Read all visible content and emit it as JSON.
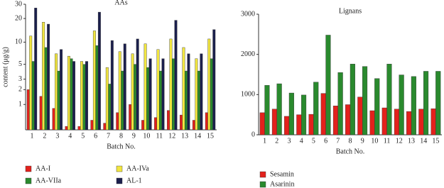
{
  "chart_data": [
    {
      "type": "bar",
      "title": "AAs",
      "xlabel": "Batch No.",
      "ylabel": "content (μg/g)",
      "yscale": "symlog",
      "categories": [
        "1",
        "2",
        "3",
        "4",
        "5",
        "6",
        "7",
        "8",
        "9",
        "10",
        "11",
        "12",
        "13",
        "14",
        "15"
      ],
      "ylim": [
        0,
        30
      ],
      "yticks": [
        1,
        2,
        3,
        5,
        10,
        20,
        30
      ],
      "series": [
        {
          "name": "AA-I",
          "color": "#e3211c",
          "values": [
            2.0,
            1.5,
            0.8,
            0.1,
            0.1,
            0.3,
            0.2,
            0.6,
            1.0,
            0.3,
            0.4,
            0.7,
            0.5,
            0.3,
            0.6
          ]
        },
        {
          "name": "AA-IVa",
          "color": "#f2e640",
          "values": [
            12,
            18,
            7,
            6.5,
            5.5,
            14,
            4.5,
            7.5,
            7,
            9.5,
            8,
            11,
            8.5,
            6,
            11
          ]
        },
        {
          "name": "AA-VIIa",
          "color": "#2a8a2e",
          "values": [
            5.5,
            8.5,
            4,
            6,
            5,
            9,
            2.5,
            4,
            5,
            4.5,
            4,
            6,
            4,
            4,
            6
          ]
        },
        {
          "name": "AL-1",
          "color": "#1b1f4d",
          "values": [
            27,
            17,
            8,
            5.5,
            5.5,
            24,
            10.5,
            9.5,
            11,
            6,
            6,
            19,
            7,
            7,
            14.5
          ]
        }
      ]
    },
    {
      "type": "bar",
      "title": "Lignans",
      "xlabel": "Batch No.",
      "categories": [
        "1",
        "2",
        "3",
        "4",
        "5",
        "6",
        "7",
        "8",
        "9",
        "10",
        "11",
        "12",
        "13",
        "14",
        "15"
      ],
      "ylim": [
        0,
        3000
      ],
      "yticks": [
        0,
        1000,
        2000,
        3000
      ],
      "series": [
        {
          "name": "Sesamin",
          "color": "#e3211c",
          "values": [
            550,
            640,
            460,
            500,
            510,
            1030,
            720,
            750,
            940,
            600,
            670,
            640,
            580,
            640,
            650
          ]
        },
        {
          "name": "Asarinin",
          "color": "#2a8a2e",
          "values": [
            1230,
            1270,
            1040,
            990,
            1310,
            2480,
            1550,
            1760,
            1700,
            1400,
            1760,
            1490,
            1450,
            1580,
            1580
          ]
        }
      ]
    }
  ]
}
